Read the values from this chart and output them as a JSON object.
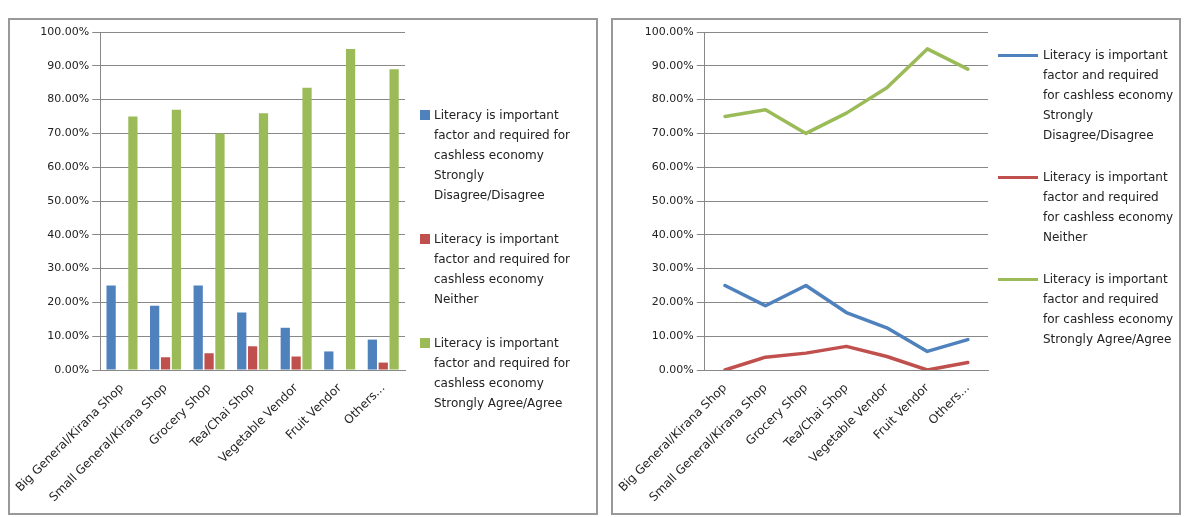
{
  "chart_data": [
    {
      "type": "bar",
      "categories": [
        "Big General/Kirana Shop",
        "Small General/Kirana Shop",
        "Grocery Shop",
        "Tea/Chai Shop",
        "Vegetable Vendor",
        "Fruit Vendor",
        "Others..."
      ],
      "series": [
        {
          "name": "Literacy is important factor and required for cashless economy Strongly Disagree/Disagree",
          "color": "#4f81bd",
          "values": [
            25,
            19,
            25,
            17,
            12.5,
            5.5,
            9
          ]
        },
        {
          "name": "Literacy is important factor and required for cashless economy Neither",
          "color": "#c0504d",
          "values": [
            0,
            3.8,
            5,
            7,
            4,
            0,
            2.2
          ]
        },
        {
          "name": "Literacy is important factor and required for cashless economy Strongly Agree/Agree",
          "color": "#9bbb59",
          "values": [
            75,
            77,
            70,
            76,
            83.5,
            95,
            89
          ]
        }
      ],
      "ylim": [
        0,
        100
      ],
      "yticks": [
        {
          "value": 0,
          "label": "0.00%"
        },
        {
          "value": 10,
          "label": "10.00%"
        },
        {
          "value": 20,
          "label": "20.00%"
        },
        {
          "value": 30,
          "label": "30.00%"
        },
        {
          "value": 40,
          "label": "40.00%"
        },
        {
          "value": 50,
          "label": "50.00%"
        },
        {
          "value": 60,
          "label": "60.00%"
        },
        {
          "value": 70,
          "label": "70.00%"
        },
        {
          "value": 80,
          "label": "80.00%"
        },
        {
          "value": 90,
          "label": "90.00%"
        },
        {
          "value": 100,
          "label": "100.00%"
        }
      ],
      "grid": "y",
      "legend": "right"
    },
    {
      "type": "line",
      "categories": [
        "Big General/Kirana Shop",
        "Small General/Kirana Shop",
        "Grocery Shop",
        "Tea/Chai Shop",
        "Vegetable Vendor",
        "Fruit Vendor",
        "Others..."
      ],
      "series": [
        {
          "name": "Literacy is important factor and required for cashless economy Strongly Disagree/Disagree",
          "color": "#4f81bd",
          "values": [
            25,
            19,
            25,
            17,
            12.5,
            5.5,
            9
          ]
        },
        {
          "name": "Literacy is important factor and required for cashless economy Neither",
          "color": "#c0504d",
          "values": [
            0,
            3.8,
            5,
            7,
            4,
            0,
            2.2
          ]
        },
        {
          "name": "Literacy is important factor and required for cashless economy Strongly Agree/Agree",
          "color": "#9bbb59",
          "values": [
            75,
            77,
            70,
            76,
            83.5,
            95,
            89
          ]
        }
      ],
      "ylim": [
        0,
        100
      ],
      "yticks": [
        {
          "value": 0,
          "label": "0.00%"
        },
        {
          "value": 10,
          "label": "10.00%"
        },
        {
          "value": 20,
          "label": "20.00%"
        },
        {
          "value": 30,
          "label": "30.00%"
        },
        {
          "value": 40,
          "label": "40.00%"
        },
        {
          "value": 50,
          "label": "50.00%"
        },
        {
          "value": 60,
          "label": "60.00%"
        },
        {
          "value": 70,
          "label": "70.00%"
        },
        {
          "value": 80,
          "label": "80.00%"
        },
        {
          "value": 90,
          "label": "90.00%"
        },
        {
          "value": 100,
          "label": "100.00%"
        }
      ],
      "grid": "y",
      "legend": "right",
      "marker": "none"
    }
  ]
}
